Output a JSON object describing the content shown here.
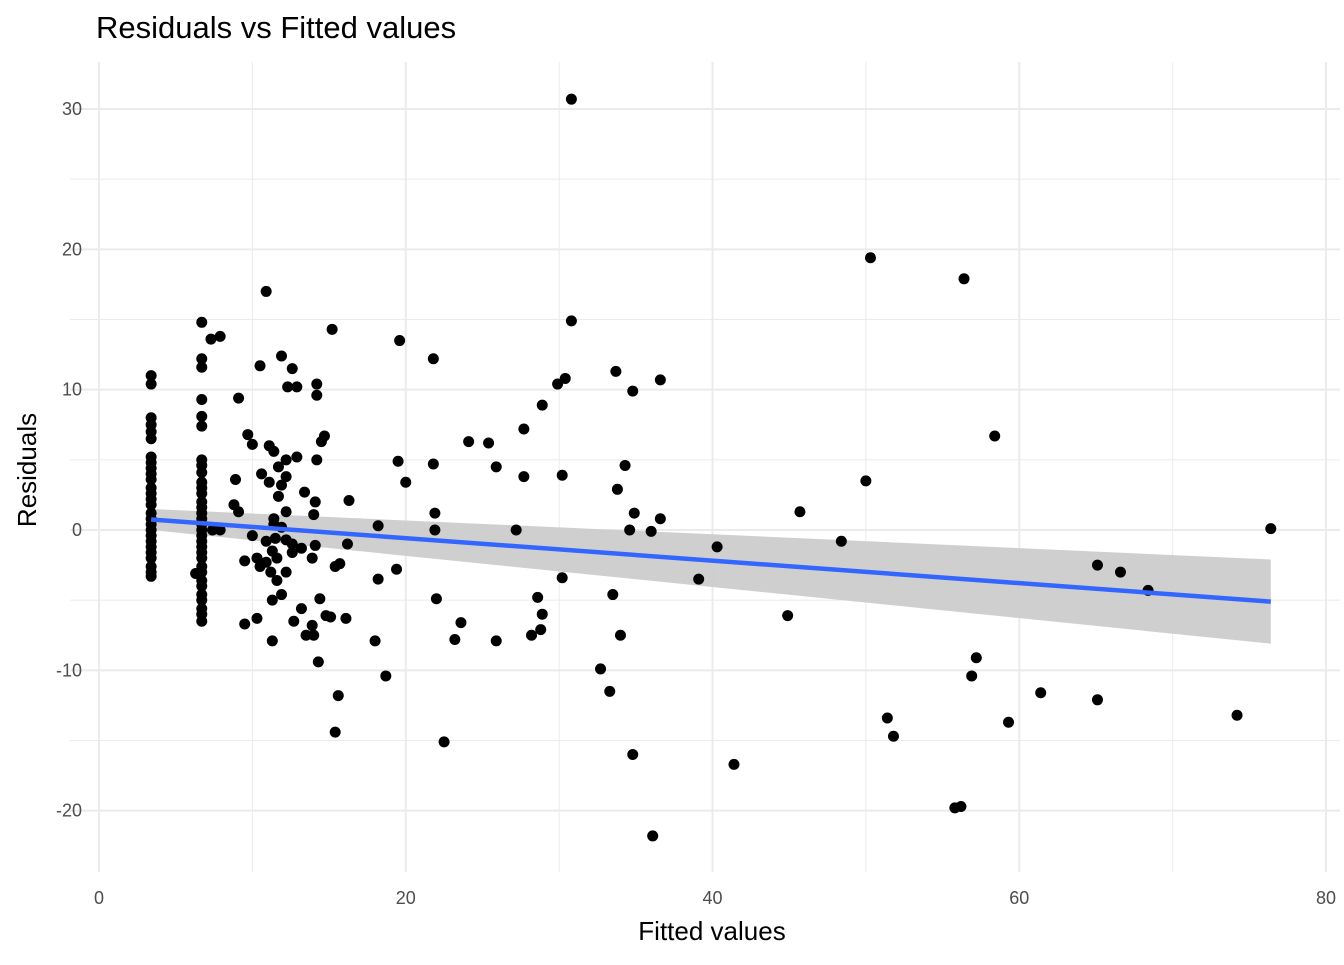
{
  "chart_data": {
    "type": "scatter",
    "title": "Residuals vs Fitted values",
    "xlabel": "Fitted values",
    "ylabel": "Residuals",
    "xlim": [
      0,
      80
    ],
    "ylim": [
      -24,
      33
    ],
    "x_ticks": [
      0,
      20,
      40,
      60,
      80
    ],
    "y_ticks": [
      -20,
      -10,
      0,
      10,
      20,
      30
    ],
    "x_tick_labels": [
      "0",
      "20",
      "40",
      "60",
      "80"
    ],
    "y_tick_labels": [
      "-20",
      "-10",
      "0",
      "10",
      "20",
      "30"
    ],
    "grid": true,
    "legend": "none",
    "point_color": "#000000",
    "trend_color": "#3366FF",
    "band_color": "#cccccc",
    "grid_color": "#ebebeb",
    "series": [
      {
        "type": "scatter",
        "points": [
          [
            3.4,
            11.0
          ],
          [
            3.4,
            10.4
          ],
          [
            3.4,
            8.0
          ],
          [
            3.4,
            7.5
          ],
          [
            3.4,
            7.0
          ],
          [
            3.4,
            6.5
          ],
          [
            3.4,
            5.2
          ],
          [
            3.4,
            4.8
          ],
          [
            3.4,
            4.4
          ],
          [
            3.4,
            4.0
          ],
          [
            3.4,
            3.6
          ],
          [
            3.4,
            3.0
          ],
          [
            3.4,
            2.6
          ],
          [
            3.4,
            2.2
          ],
          [
            3.4,
            1.8
          ],
          [
            3.4,
            1.2
          ],
          [
            3.4,
            0.8
          ],
          [
            3.4,
            0.4
          ],
          [
            3.4,
            0.0
          ],
          [
            3.4,
            -0.4
          ],
          [
            3.4,
            -0.8
          ],
          [
            3.4,
            -1.2
          ],
          [
            3.4,
            -1.6
          ],
          [
            3.4,
            -2.0
          ],
          [
            3.4,
            -2.6
          ],
          [
            3.4,
            -3.0
          ],
          [
            3.4,
            -3.3
          ],
          [
            6.7,
            14.8
          ],
          [
            6.7,
            12.2
          ],
          [
            6.7,
            11.6
          ],
          [
            6.7,
            9.3
          ],
          [
            6.7,
            8.1
          ],
          [
            6.7,
            7.4
          ],
          [
            6.7,
            5.0
          ],
          [
            6.7,
            4.6
          ],
          [
            6.7,
            4.1
          ],
          [
            6.7,
            3.4
          ],
          [
            6.7,
            3.0
          ],
          [
            6.7,
            2.6
          ],
          [
            6.7,
            2.0
          ],
          [
            6.7,
            1.6
          ],
          [
            6.7,
            1.2
          ],
          [
            6.7,
            0.8
          ],
          [
            6.7,
            0.4
          ],
          [
            6.7,
            0.0
          ],
          [
            6.7,
            -0.4
          ],
          [
            6.7,
            -0.8
          ],
          [
            6.7,
            -1.2
          ],
          [
            6.7,
            -1.6
          ],
          [
            6.7,
            -2.0
          ],
          [
            6.7,
            -2.6
          ],
          [
            6.7,
            -3.0
          ],
          [
            6.7,
            -3.6
          ],
          [
            6.7,
            -4.0
          ],
          [
            6.7,
            -4.6
          ],
          [
            6.7,
            -5.0
          ],
          [
            6.7,
            -5.6
          ],
          [
            6.7,
            -6.0
          ],
          [
            6.7,
            -6.5
          ],
          [
            6.3,
            -3.1
          ],
          [
            7.3,
            13.6
          ],
          [
            7.9,
            13.8
          ],
          [
            7.4,
            0.0
          ],
          [
            7.9,
            0.0
          ],
          [
            8.8,
            1.8
          ],
          [
            8.9,
            3.6
          ],
          [
            9.1,
            9.4
          ],
          [
            9.1,
            1.3
          ],
          [
            9.5,
            -2.2
          ],
          [
            9.5,
            -6.7
          ],
          [
            9.7,
            6.8
          ],
          [
            10.0,
            6.1
          ],
          [
            10.0,
            -0.4
          ],
          [
            10.3,
            -2.0
          ],
          [
            10.3,
            -6.3
          ],
          [
            10.5,
            11.7
          ],
          [
            10.6,
            4.0
          ],
          [
            10.5,
            -2.6
          ],
          [
            10.9,
            17.0
          ],
          [
            10.9,
            -2.3
          ],
          [
            10.9,
            -0.8
          ],
          [
            11.1,
            6.0
          ],
          [
            11.1,
            3.4
          ],
          [
            11.3,
            -1.5
          ],
          [
            11.2,
            -3.0
          ],
          [
            11.3,
            -5.0
          ],
          [
            11.3,
            -7.9
          ],
          [
            11.4,
            5.6
          ],
          [
            11.4,
            0.8
          ],
          [
            11.4,
            0.4
          ],
          [
            11.5,
            -0.6
          ],
          [
            11.6,
            -2.0
          ],
          [
            11.6,
            -3.6
          ],
          [
            11.7,
            2.4
          ],
          [
            11.7,
            4.5
          ],
          [
            11.9,
            12.4
          ],
          [
            11.9,
            3.2
          ],
          [
            11.9,
            0.2
          ],
          [
            11.9,
            -4.6
          ],
          [
            12.2,
            3.8
          ],
          [
            12.2,
            5.0
          ],
          [
            12.2,
            1.3
          ],
          [
            12.2,
            -0.7
          ],
          [
            12.2,
            -3.0
          ],
          [
            12.3,
            10.2
          ],
          [
            12.6,
            11.5
          ],
          [
            12.6,
            -1.0
          ],
          [
            12.6,
            -1.6
          ],
          [
            12.7,
            -6.5
          ],
          [
            12.9,
            10.2
          ],
          [
            12.9,
            5.2
          ],
          [
            13.2,
            -1.3
          ],
          [
            13.2,
            -5.6
          ],
          [
            13.4,
            2.7
          ],
          [
            13.5,
            -7.5
          ],
          [
            13.9,
            -2.0
          ],
          [
            13.9,
            -6.8
          ],
          [
            14.0,
            -7.5
          ],
          [
            14.0,
            1.1
          ],
          [
            14.1,
            2.0
          ],
          [
            14.1,
            -1.1
          ],
          [
            14.2,
            5.0
          ],
          [
            14.2,
            10.4
          ],
          [
            14.2,
            9.6
          ],
          [
            14.3,
            -9.4
          ],
          [
            14.4,
            -4.9
          ],
          [
            14.5,
            6.3
          ],
          [
            14.7,
            6.7
          ],
          [
            14.8,
            -6.1
          ],
          [
            15.1,
            -6.2
          ],
          [
            15.2,
            14.3
          ],
          [
            15.4,
            -2.6
          ],
          [
            15.4,
            -14.4
          ],
          [
            15.6,
            -11.8
          ],
          [
            15.7,
            -2.4
          ],
          [
            16.1,
            -6.3
          ],
          [
            16.3,
            2.1
          ],
          [
            16.2,
            -1.0
          ],
          [
            18.0,
            -7.9
          ],
          [
            18.2,
            -3.5
          ],
          [
            18.2,
            0.3
          ],
          [
            18.7,
            -10.4
          ],
          [
            19.4,
            -2.8
          ],
          [
            19.6,
            13.5
          ],
          [
            19.5,
            4.9
          ],
          [
            20.0,
            3.4
          ],
          [
            21.8,
            12.2
          ],
          [
            21.8,
            4.7
          ],
          [
            21.9,
            1.2
          ],
          [
            21.9,
            0.0
          ],
          [
            22.0,
            -4.9
          ],
          [
            22.5,
            -15.1
          ],
          [
            23.2,
            -7.8
          ],
          [
            23.6,
            -6.6
          ],
          [
            24.1,
            6.3
          ],
          [
            25.4,
            6.2
          ],
          [
            25.9,
            4.5
          ],
          [
            25.9,
            -7.9
          ],
          [
            27.2,
            0.0
          ],
          [
            27.7,
            7.2
          ],
          [
            27.7,
            3.8
          ],
          [
            28.2,
            -7.5
          ],
          [
            28.6,
            -4.8
          ],
          [
            28.8,
            -7.1
          ],
          [
            28.9,
            8.9
          ],
          [
            28.9,
            -6.0
          ],
          [
            29.9,
            10.4
          ],
          [
            30.2,
            3.9
          ],
          [
            30.2,
            -3.4
          ],
          [
            30.4,
            10.8
          ],
          [
            30.8,
            30.7
          ],
          [
            30.8,
            14.9
          ],
          [
            32.7,
            -9.9
          ],
          [
            33.3,
            -11.5
          ],
          [
            33.5,
            -4.6
          ],
          [
            33.7,
            11.3
          ],
          [
            33.8,
            2.9
          ],
          [
            34.0,
            -7.5
          ],
          [
            34.3,
            4.6
          ],
          [
            34.6,
            0.0
          ],
          [
            34.8,
            9.9
          ],
          [
            34.8,
            -16.0
          ],
          [
            34.9,
            1.2
          ],
          [
            36.0,
            -0.1
          ],
          [
            36.1,
            -21.8
          ],
          [
            36.6,
            0.8
          ],
          [
            36.6,
            10.7
          ],
          [
            39.1,
            -3.5
          ],
          [
            40.3,
            -1.2
          ],
          [
            41.4,
            -16.7
          ],
          [
            44.9,
            -6.1
          ],
          [
            45.7,
            1.3
          ],
          [
            48.4,
            -0.8
          ],
          [
            50.0,
            3.5
          ],
          [
            50.3,
            19.4
          ],
          [
            51.4,
            -13.4
          ],
          [
            51.8,
            -14.7
          ],
          [
            55.8,
            -19.8
          ],
          [
            56.2,
            -19.7
          ],
          [
            56.4,
            17.9
          ],
          [
            56.9,
            -10.4
          ],
          [
            57.2,
            -9.1
          ],
          [
            58.4,
            6.7
          ],
          [
            59.3,
            -13.7
          ],
          [
            61.4,
            -11.6
          ],
          [
            65.1,
            -2.5
          ],
          [
            65.1,
            -12.1
          ],
          [
            66.6,
            -3.0
          ],
          [
            68.4,
            -4.3
          ],
          [
            74.2,
            -13.2
          ],
          [
            76.4,
            0.1
          ]
        ]
      },
      {
        "type": "line",
        "points": [
          [
            3.4,
            0.75
          ],
          [
            76.4,
            -5.1
          ]
        ]
      },
      {
        "type": "area",
        "upper": [
          [
            3.4,
            1.5
          ],
          [
            76.4,
            -2.1
          ]
        ],
        "lower": [
          [
            3.4,
            0.0
          ],
          [
            76.4,
            -8.1
          ]
        ]
      }
    ]
  }
}
